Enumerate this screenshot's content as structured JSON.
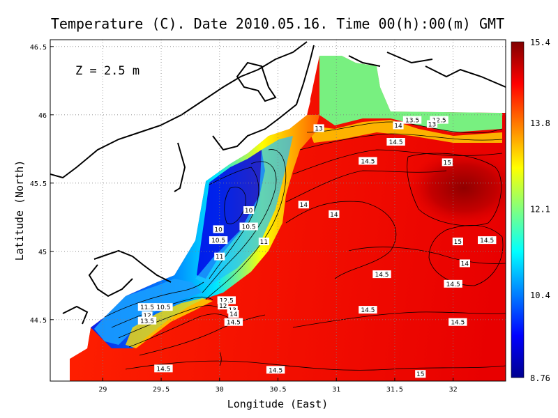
{
  "chart_data": {
    "type": "heatmap",
    "title": "Temperature (C). Date 2010.05.16. Time 00(h):00(m) GMT",
    "annotation": "Z = 2.5 m",
    "xlabel": "Longitude (East)",
    "ylabel": "Latitude (North)",
    "xlim": [
      28.55,
      32.45
    ],
    "ylim": [
      44.05,
      46.55
    ],
    "x_ticks": [
      "29",
      "29.5",
      "30",
      "30.5",
      "31",
      "31.5",
      "32"
    ],
    "x_tick_values": [
      29,
      29.5,
      30,
      30.5,
      31,
      31.5,
      32
    ],
    "y_ticks": [
      "44.5",
      "45",
      "45.5",
      "46",
      "46.5"
    ],
    "y_tick_values": [
      44.5,
      45,
      45.5,
      46,
      46.5
    ],
    "grid": true,
    "colorbar": {
      "min": 8.76,
      "max": 15.4,
      "ticks": [
        "15.4",
        "13.8",
        "12.1",
        "10.4",
        "8.76"
      ],
      "tick_values": [
        15.4,
        13.8,
        12.1,
        10.4,
        8.76
      ],
      "colormap": [
        "#00008f",
        "#0000ff",
        "#0080ff",
        "#00ffff",
        "#80ff80",
        "#ffff00",
        "#ff8000",
        "#ff0000",
        "#800000"
      ]
    },
    "contour_labels": [
      {
        "text": "13.5",
        "lon": 31.65,
        "lat": 45.96
      },
      {
        "text": "12.5",
        "lon": 31.88,
        "lat": 45.96
      },
      {
        "text": "13",
        "lon": 31.82,
        "lat": 45.93
      },
      {
        "text": "13",
        "lon": 30.85,
        "lat": 45.9
      },
      {
        "text": "14",
        "lon": 31.53,
        "lat": 45.92
      },
      {
        "text": "14.5",
        "lon": 31.51,
        "lat": 45.8
      },
      {
        "text": "14.5",
        "lon": 31.27,
        "lat": 45.66
      },
      {
        "text": "15",
        "lon": 31.95,
        "lat": 45.65
      },
      {
        "text": "14",
        "lon": 30.72,
        "lat": 45.34
      },
      {
        "text": "14",
        "lon": 30.98,
        "lat": 45.27
      },
      {
        "text": "10",
        "lon": 30.25,
        "lat": 45.3
      },
      {
        "text": "10.5",
        "lon": 30.25,
        "lat": 45.18
      },
      {
        "text": "10",
        "lon": 29.99,
        "lat": 45.16
      },
      {
        "text": "10.5",
        "lon": 29.99,
        "lat": 45.08
      },
      {
        "text": "11",
        "lon": 30.38,
        "lat": 45.07
      },
      {
        "text": "11",
        "lon": 30.0,
        "lat": 44.96
      },
      {
        "text": "15",
        "lon": 32.04,
        "lat": 45.07
      },
      {
        "text": "14.5",
        "lon": 32.29,
        "lat": 45.08
      },
      {
        "text": "14",
        "lon": 32.1,
        "lat": 44.91
      },
      {
        "text": "14.5",
        "lon": 31.39,
        "lat": 44.83
      },
      {
        "text": "14.5",
        "lon": 32.0,
        "lat": 44.76
      },
      {
        "text": "11.5",
        "lon": 29.38,
        "lat": 44.59
      },
      {
        "text": "10.5",
        "lon": 29.52,
        "lat": 44.59
      },
      {
        "text": "12",
        "lon": 29.38,
        "lat": 44.53
      },
      {
        "text": "13.5",
        "lon": 29.38,
        "lat": 44.49
      },
      {
        "text": "12.5",
        "lon": 30.06,
        "lat": 44.64
      },
      {
        "text": "12",
        "lon": 30.03,
        "lat": 44.6
      },
      {
        "text": "13",
        "lon": 30.11,
        "lat": 44.57
      },
      {
        "text": "14",
        "lon": 30.12,
        "lat": 44.54
      },
      {
        "text": "14.5",
        "lon": 30.12,
        "lat": 44.48
      },
      {
        "text": "14.5",
        "lon": 31.27,
        "lat": 44.57
      },
      {
        "text": "14.5",
        "lon": 32.04,
        "lat": 44.48
      },
      {
        "text": "14.5",
        "lon": 29.52,
        "lat": 44.14
      },
      {
        "text": "14.5",
        "lon": 30.48,
        "lat": 44.13
      },
      {
        "text": "15",
        "lon": 31.72,
        "lat": 44.1
      }
    ]
  }
}
